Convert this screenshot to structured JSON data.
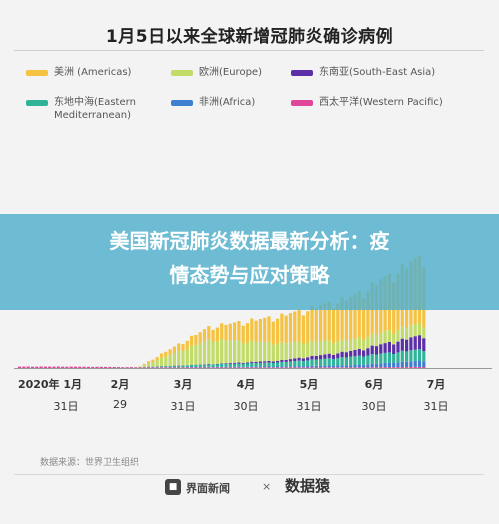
{
  "chart_data": {
    "type": "bar",
    "stacked": true,
    "title": "1月5日以来全球新增冠肺炎确诊病例",
    "series": [
      {
        "name": "美洲 (Americas)",
        "color": "#f5c242"
      },
      {
        "name": "欧洲(Europe)",
        "color": "#c2dc6a"
      },
      {
        "name": "东南亚(South-East Asia)",
        "color": "#5b2fa6"
      },
      {
        "name": "东地中海(Eastern Mediterranean)",
        "color": "#2fb49a"
      },
      {
        "name": "非洲(Africa)",
        "color": "#3f7fd0"
      },
      {
        "name": "西太平洋(Western Pacific)",
        "color": "#e0479a"
      }
    ],
    "x_ticks": [
      {
        "month": "2020年 1月",
        "day": "31日"
      },
      {
        "month": "2月",
        "day": "29"
      },
      {
        "month": "3月",
        "day": "31日"
      },
      {
        "month": "4月",
        "day": "30日"
      },
      {
        "month": "5月",
        "day": "31日"
      },
      {
        "month": "6月",
        "day": "30日"
      },
      {
        "month": "7月",
        "day": "31日"
      }
    ],
    "grid": false,
    "legend_position": "top",
    "monthly_daily_totals": [
      {
        "period": "2020年 1月 31日",
        "americas": 0,
        "europe": 0,
        "southeast_asia": 0,
        "eastern_mediterranean": 0,
        "africa": 0,
        "western_pacific": 2000
      },
      {
        "period": "2月 29",
        "americas": 0,
        "europe": 200,
        "southeast_asia": 0,
        "eastern_mediterranean": 200,
        "africa": 0,
        "western_pacific": 1000
      },
      {
        "period": "3月 31日",
        "americas": 18000,
        "europe": 35000,
        "southeast_asia": 500,
        "eastern_mediterranean": 3500,
        "africa": 500,
        "western_pacific": 1000
      },
      {
        "period": "4月 30日",
        "americas": 38000,
        "europe": 25000,
        "southeast_asia": 2500,
        "eastern_mediterranean": 6000,
        "africa": 1200,
        "western_pacific": 1000
      },
      {
        "period": "5月 31日",
        "americas": 60000,
        "europe": 16000,
        "southeast_asia": 8000,
        "eastern_mediterranean": 12000,
        "africa": 3000,
        "western_pacific": 1000
      },
      {
        "period": "6月 30日",
        "americas": 95000,
        "europe": 17000,
        "southeast_asia": 20000,
        "eastern_mediterranean": 16000,
        "africa": 9000,
        "western_pacific": 1500
      },
      {
        "period": "7月 31日",
        "americas": 150000,
        "europe": 25000,
        "southeast_asia": 60000,
        "eastern_mediterranean": 15000,
        "africa": 13000,
        "western_pacific": 5000
      }
    ]
  },
  "source_label": "数据来源：世界卫生组织",
  "footer": {
    "publisher": "界面新闻",
    "times": "×",
    "partner": "数据猿"
  },
  "overlay": {
    "headline_line1": "美国新冠肺炎数据最新分析：疫",
    "headline_line2": "情态势与应对策略"
  }
}
